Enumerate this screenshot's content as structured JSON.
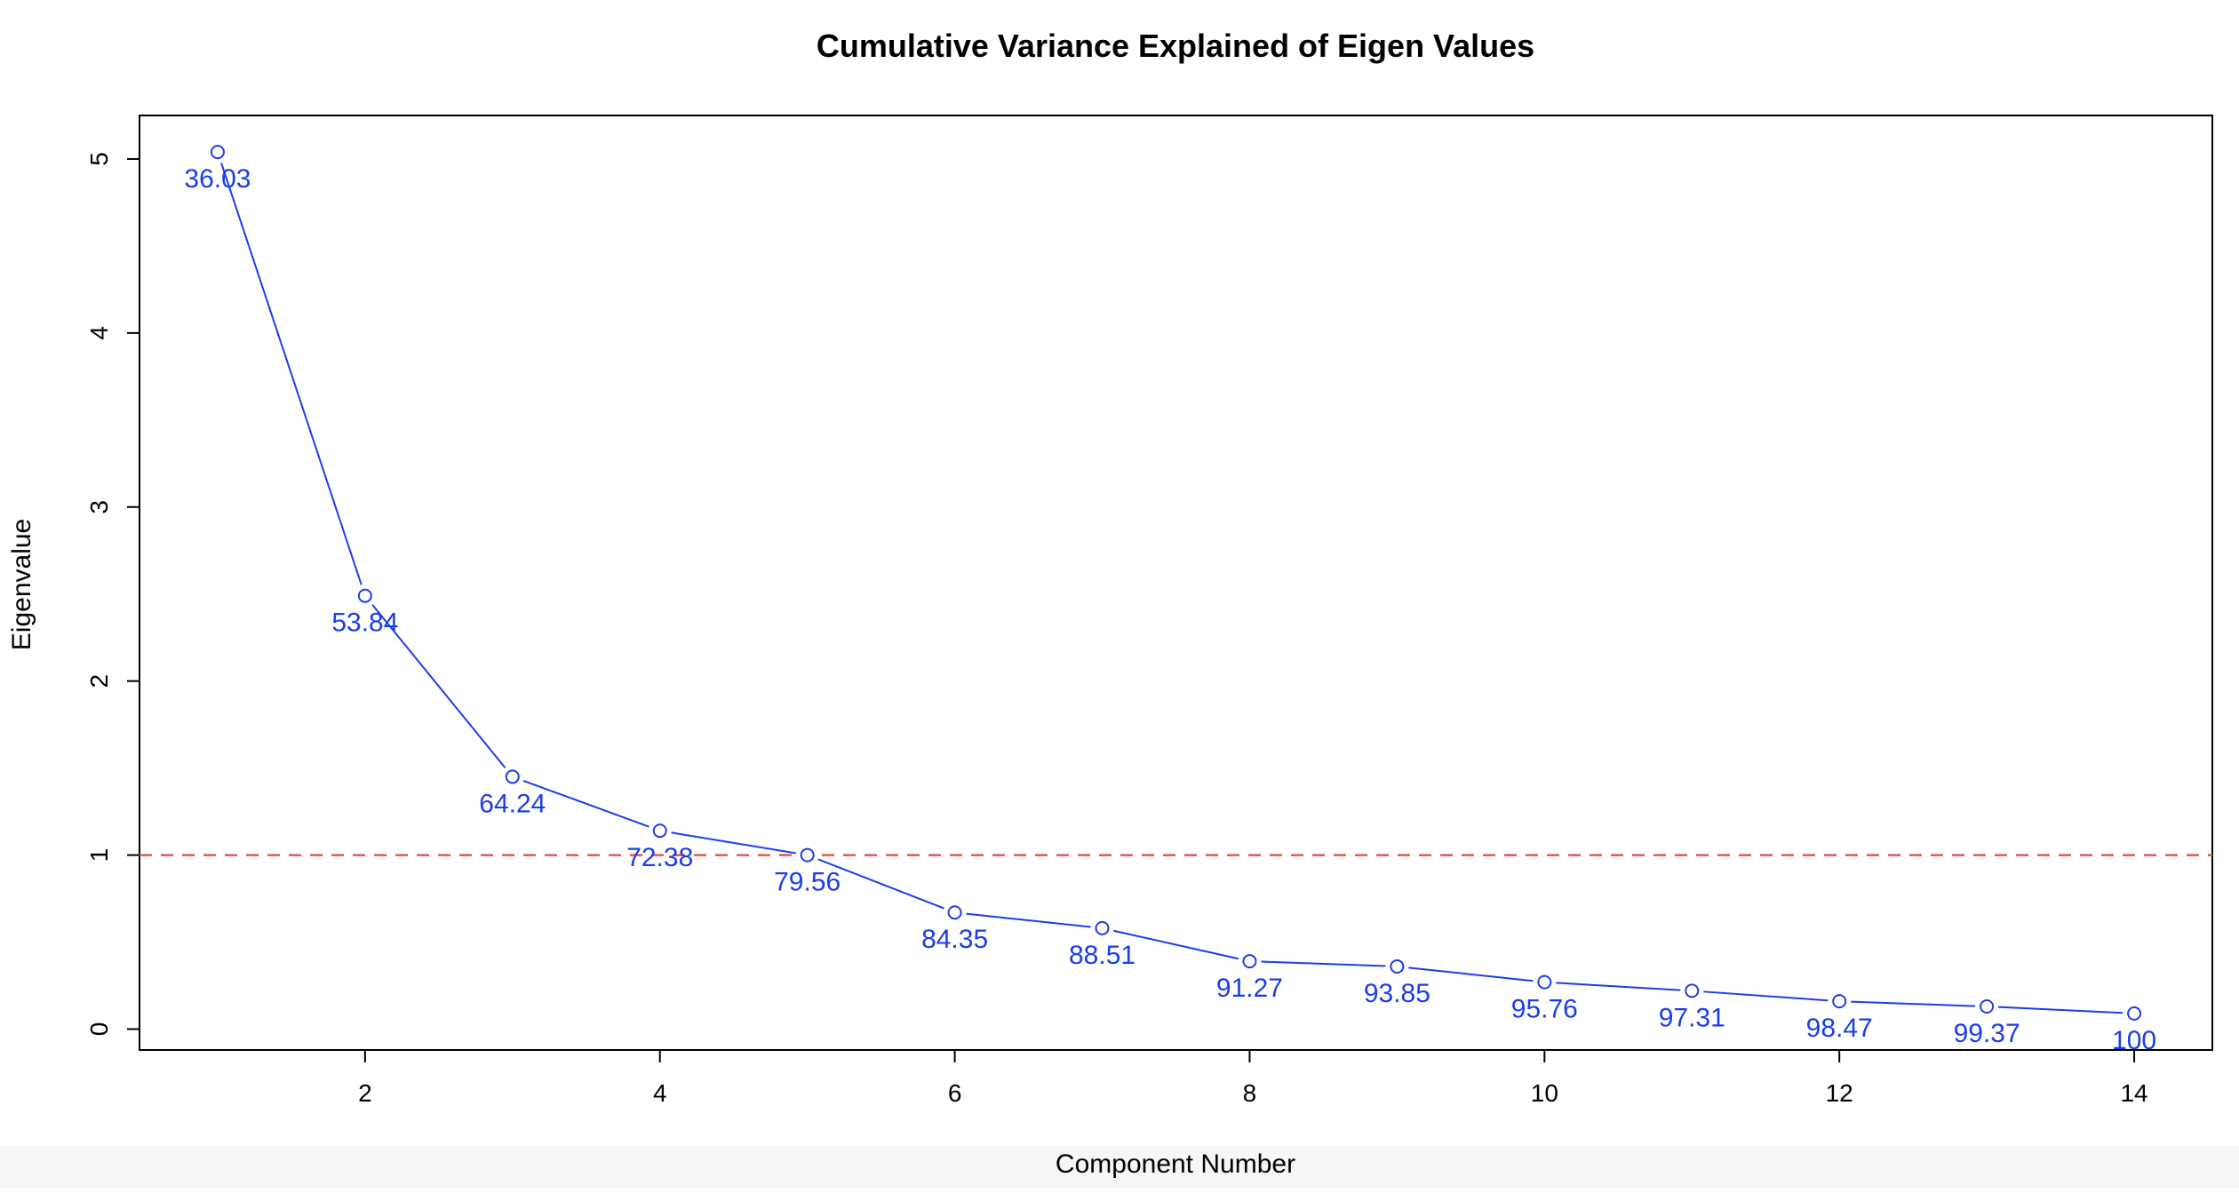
{
  "chart_data": {
    "type": "line",
    "title": "Cumulative Variance Explained of Eigen Values",
    "xlabel": "Component Number",
    "ylabel": "Eigenvalue",
    "xlim": [
      0.47,
      14.53
    ],
    "ylim": [
      -0.12,
      5.25
    ],
    "x_ticks": [
      2,
      4,
      6,
      8,
      10,
      12,
      14
    ],
    "y_ticks": [
      0,
      1,
      2,
      3,
      4,
      5
    ],
    "grid": false,
    "series": [
      {
        "x": [
          1,
          2,
          3,
          4,
          5,
          6,
          7,
          8,
          9,
          10,
          11,
          12,
          13,
          14
        ],
        "values": [
          5.04,
          2.49,
          1.45,
          1.14,
          1.0,
          0.67,
          0.58,
          0.39,
          0.36,
          0.27,
          0.22,
          0.16,
          0.13,
          0.09
        ],
        "point_labels": [
          "36.03",
          "53.84",
          "64.24",
          "72.38",
          "79.56",
          "84.35",
          "88.51",
          "91.27",
          "93.85",
          "95.76",
          "97.31",
          "98.47",
          "99.37",
          "100"
        ],
        "color": "#1a3cf0",
        "marker": "open-circle"
      }
    ],
    "reference_line": {
      "y": 1,
      "style": "dashed",
      "color": "#e8574a"
    }
  }
}
